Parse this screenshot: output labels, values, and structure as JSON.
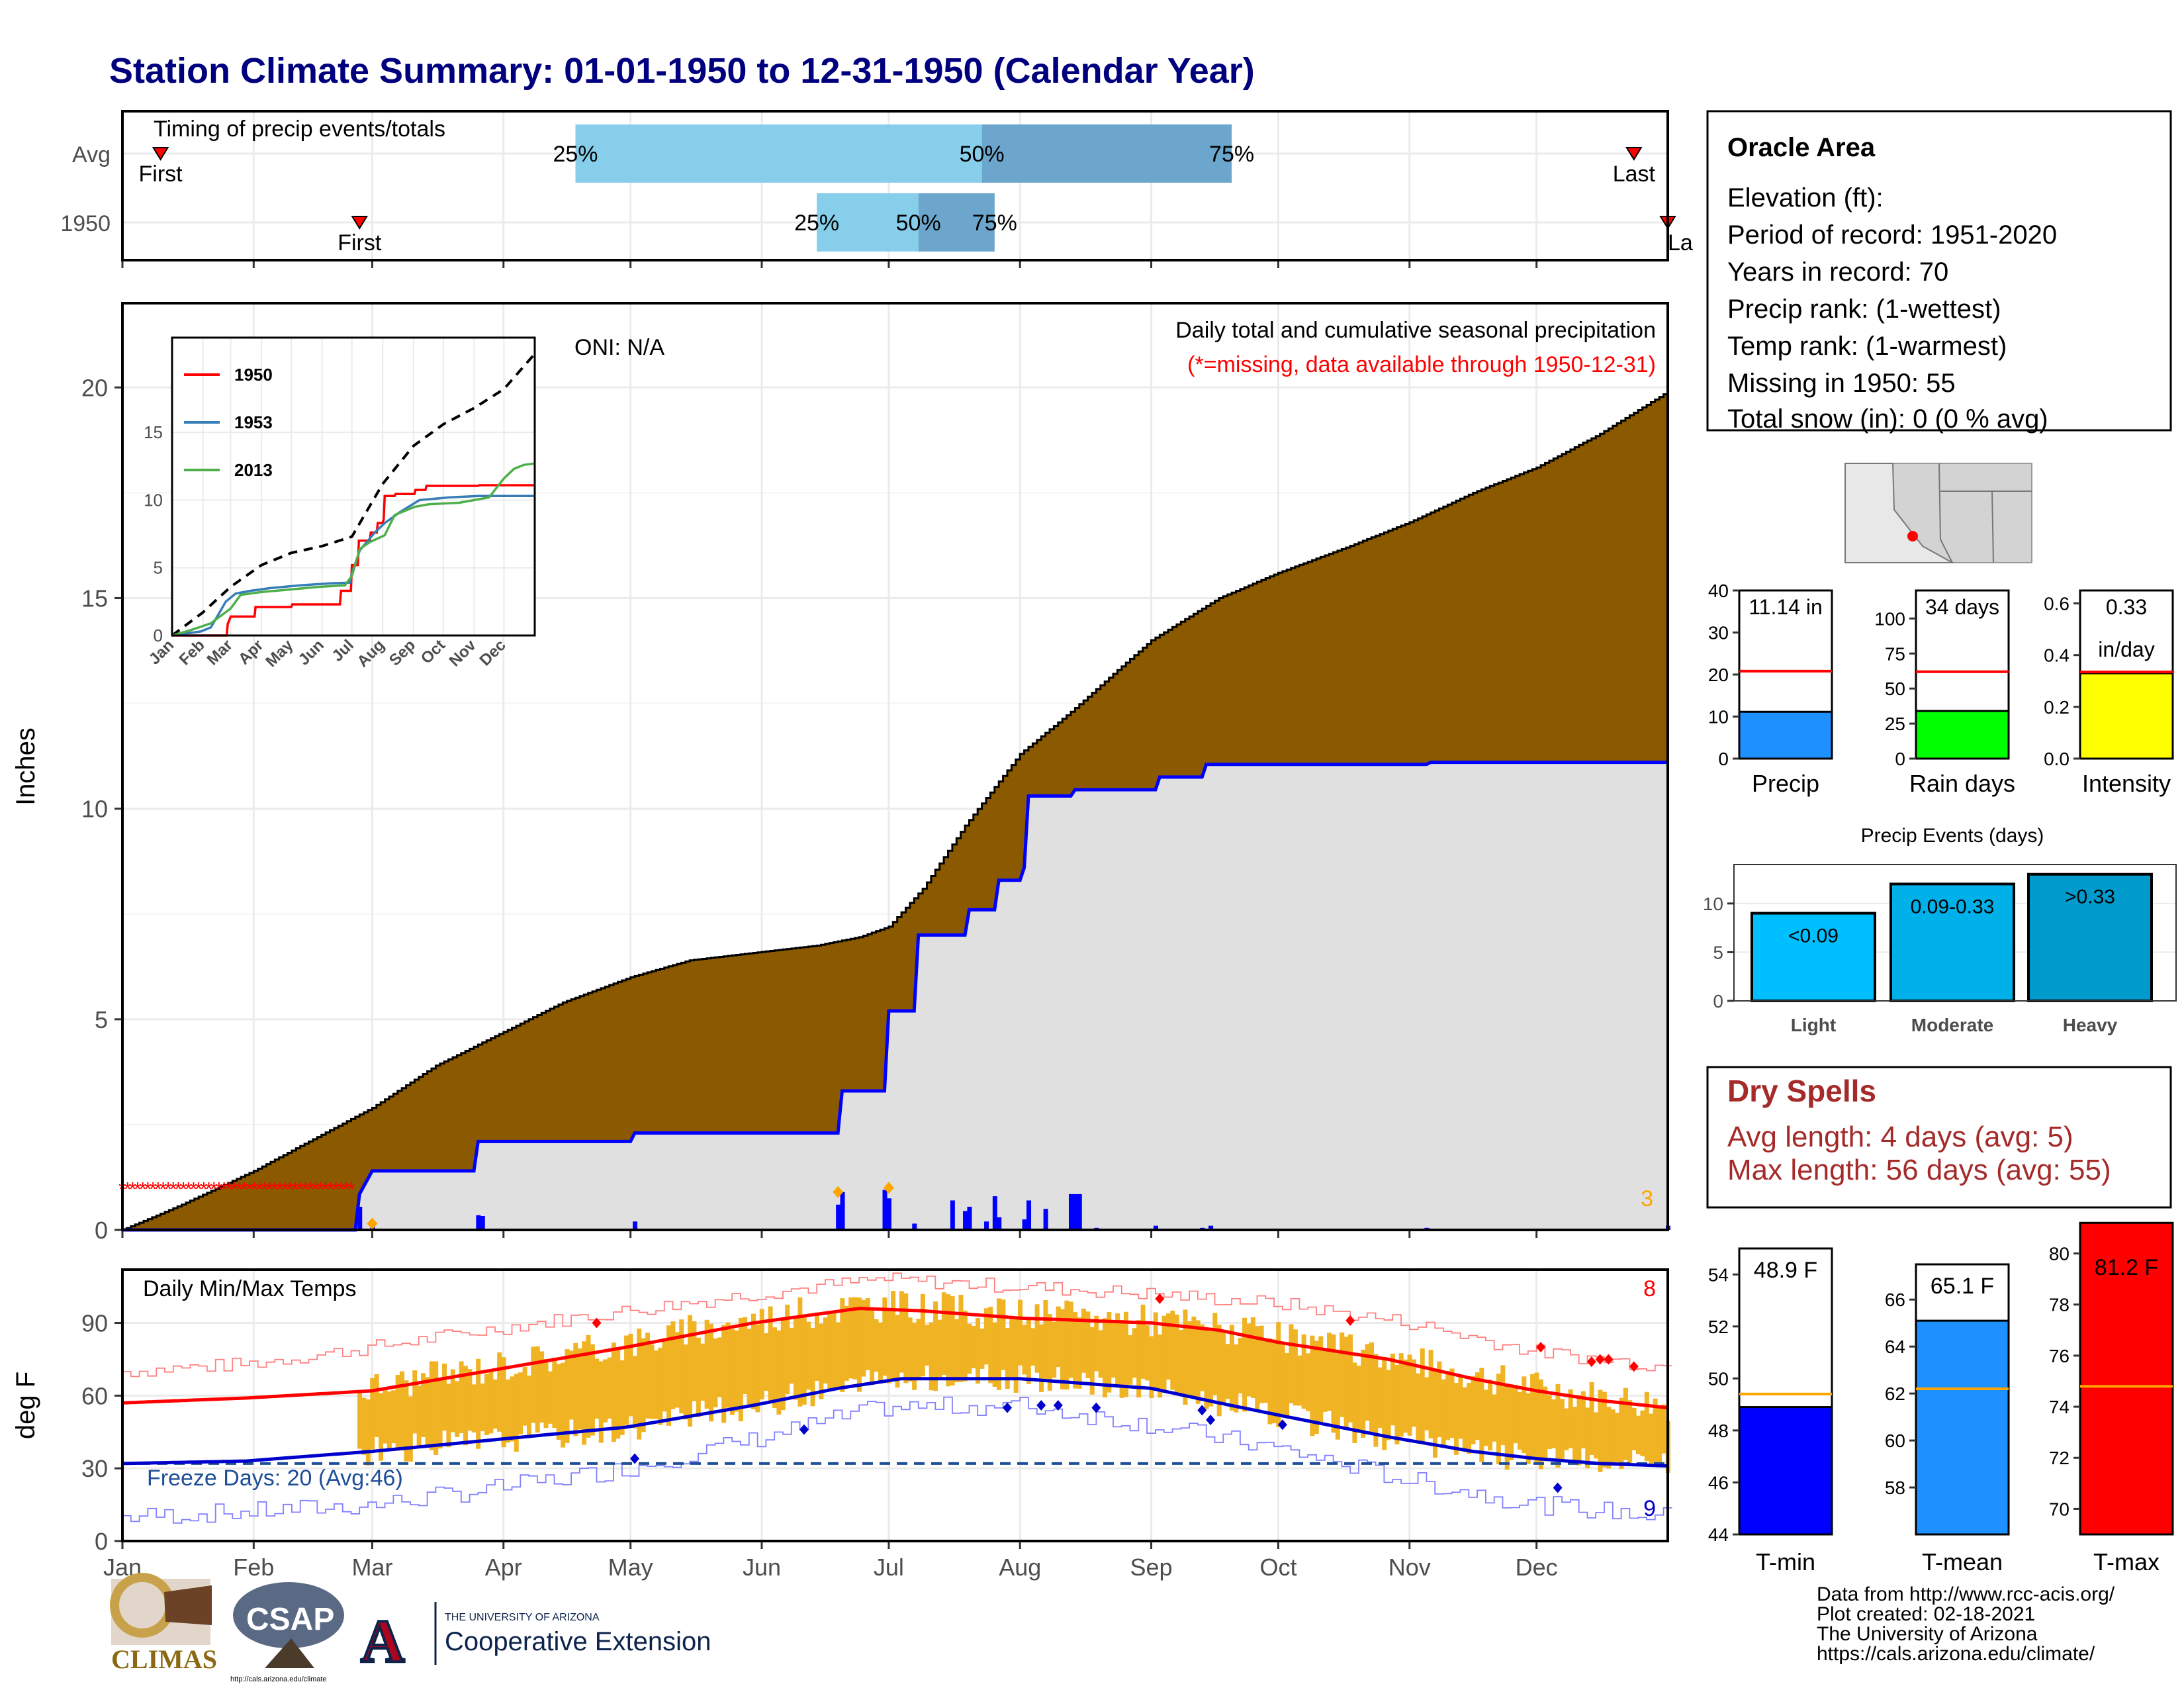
{
  "title": "Station Climate Summary: 01-01-1950 to 12-31-1950 (Calendar Year)",
  "colors": {
    "title": "#00007f",
    "precip_fill": "#8b5a00",
    "precip_avg_fill": "#e0e0e0",
    "avg_line": "#0000ff",
    "quartile_light": "#87ceeb",
    "quartile_dark": "#6ca6cd",
    "temp_bar": "#f0b323",
    "tmax_avg": "#ff0000",
    "tmin_avg": "#0000cd",
    "light": "#00bfff",
    "moderate": "#00b0e8",
    "heavy": "#009acd",
    "rain_days": "#00ff00",
    "intensity": "#ffff00",
    "precip_bar": "#1e90ff",
    "dry_spells": "#a52a2a"
  },
  "timing": {
    "label": "Timing of precip events/totals",
    "rows": [
      {
        "name": "Avg",
        "first_label": "First",
        "last_label": "Last",
        "first_day": 10,
        "last_day": 358,
        "q25_label": "25%",
        "q50_label": "50%",
        "q75_label": "75%",
        "q25": 108,
        "q50": 204,
        "q75": 263
      },
      {
        "name": "1950",
        "first_label": "First",
        "last_label": "La",
        "first_day": 57,
        "last_day": 366,
        "q25_label": "25%",
        "q50_label": "50%",
        "q75_label": "75%",
        "q25": 165,
        "q50": 189,
        "q75": 207
      }
    ]
  },
  "month_labels": [
    "Jan",
    "Feb",
    "Mar",
    "Apr",
    "May",
    "Jun",
    "Jul",
    "Aug",
    "Sep",
    "Oct",
    "Nov",
    "Dec"
  ],
  "month_days": [
    1,
    32,
    60,
    91,
    121,
    152,
    182,
    213,
    244,
    274,
    305,
    335
  ],
  "main_chart": {
    "ylabel": "Inches",
    "yticks": [
      "0",
      "5",
      "10",
      "15",
      "20"
    ],
    "ylim": [
      0,
      22
    ],
    "oni": "ONI: N/A",
    "header": "Daily total and cumulative seasonal precipitation",
    "missing_note": "(*=missing, data available through 1950-12-31)",
    "corner_count": "3",
    "avg_cumulative": [
      [
        1,
        0
      ],
      [
        15,
        0.6
      ],
      [
        32,
        1.4
      ],
      [
        45,
        2.1
      ],
      [
        60,
        2.9
      ],
      [
        75,
        3.9
      ],
      [
        91,
        4.7
      ],
      [
        105,
        5.4
      ],
      [
        121,
        6.0
      ],
      [
        135,
        6.4
      ],
      [
        152,
        6.6
      ],
      [
        165,
        6.75
      ],
      [
        175,
        6.95
      ],
      [
        182,
        7.2
      ],
      [
        190,
        8.1
      ],
      [
        200,
        9.6
      ],
      [
        213,
        11.3
      ],
      [
        225,
        12.3
      ],
      [
        235,
        13.2
      ],
      [
        244,
        14.0
      ],
      [
        260,
        15.0
      ],
      [
        274,
        15.6
      ],
      [
        290,
        16.2
      ],
      [
        305,
        16.8
      ],
      [
        320,
        17.5
      ],
      [
        335,
        18.1
      ],
      [
        350,
        18.9
      ],
      [
        366,
        19.9
      ]
    ],
    "obs_cumulative": [
      [
        1,
        0
      ],
      [
        56,
        0
      ],
      [
        57,
        0.85
      ],
      [
        60,
        1.4
      ],
      [
        84,
        1.4
      ],
      [
        85,
        2.1
      ],
      [
        121,
        2.1
      ],
      [
        122,
        2.3
      ],
      [
        170,
        2.3
      ],
      [
        171,
        3.3
      ],
      [
        181,
        3.3
      ],
      [
        182,
        5.2
      ],
      [
        188,
        5.2
      ],
      [
        189,
        7.0
      ],
      [
        200,
        7.0
      ],
      [
        201,
        7.6
      ],
      [
        207,
        7.6
      ],
      [
        208,
        8.3
      ],
      [
        213,
        8.3
      ],
      [
        214,
        8.6
      ],
      [
        215,
        10.3
      ],
      [
        225,
        10.3
      ],
      [
        226,
        10.45
      ],
      [
        245,
        10.45
      ],
      [
        246,
        10.75
      ],
      [
        256,
        10.75
      ],
      [
        257,
        11.05
      ],
      [
        309,
        11.05
      ],
      [
        310,
        11.1
      ],
      [
        366,
        11.1
      ]
    ],
    "daily_bars": [
      [
        57,
        0.55
      ],
      [
        60,
        0.15
      ],
      [
        85,
        0.35
      ],
      [
        86,
        0.33
      ],
      [
        122,
        0.2
      ],
      [
        170,
        0.6
      ],
      [
        171,
        0.9
      ],
      [
        181,
        0.95
      ],
      [
        182,
        0.75
      ],
      [
        188,
        0.15
      ],
      [
        197,
        0.7
      ],
      [
        200,
        0.45
      ],
      [
        201,
        0.55
      ],
      [
        205,
        0.2
      ],
      [
        207,
        0.8
      ],
      [
        208,
        0.3
      ],
      [
        214,
        0.25
      ],
      [
        215,
        0.7
      ],
      [
        219,
        0.5
      ],
      [
        225,
        0.85
      ],
      [
        226,
        0.85
      ],
      [
        227,
        0.85
      ],
      [
        231,
        0.05
      ],
      [
        245,
        0.1
      ],
      [
        256,
        0.05
      ],
      [
        258,
        0.1
      ],
      [
        309,
        0.05
      ],
      [
        366,
        0.1
      ]
    ],
    "missing_days": [
      1,
      56
    ]
  },
  "inset": {
    "yticks": [
      "0",
      "5",
      "10",
      "15"
    ],
    "series": [
      {
        "name": "1950",
        "color": "#ff0000",
        "values": [
          [
            1,
            0
          ],
          [
            56,
            0
          ],
          [
            57,
            0.85
          ],
          [
            60,
            1.4
          ],
          [
            84,
            1.4
          ],
          [
            85,
            2.1
          ],
          [
            121,
            2.1
          ],
          [
            122,
            2.3
          ],
          [
            170,
            2.3
          ],
          [
            171,
            3.3
          ],
          [
            181,
            3.3
          ],
          [
            182,
            5.2
          ],
          [
            188,
            5.2
          ],
          [
            189,
            7.0
          ],
          [
            200,
            7.0
          ],
          [
            201,
            7.6
          ],
          [
            207,
            7.6
          ],
          [
            208,
            8.3
          ],
          [
            213,
            8.3
          ],
          [
            214,
            8.6
          ],
          [
            215,
            10.3
          ],
          [
            225,
            10.3
          ],
          [
            226,
            10.45
          ],
          [
            245,
            10.45
          ],
          [
            246,
            10.75
          ],
          [
            256,
            10.75
          ],
          [
            257,
            11.05
          ],
          [
            309,
            11.05
          ],
          [
            310,
            11.1
          ],
          [
            366,
            11.1
          ]
        ]
      },
      {
        "name": "1953",
        "color": "#377eb8",
        "values": [
          [
            1,
            0
          ],
          [
            30,
            0.3
          ],
          [
            40,
            0.6
          ],
          [
            48,
            1.6
          ],
          [
            55,
            2.5
          ],
          [
            65,
            3.1
          ],
          [
            80,
            3.3
          ],
          [
            100,
            3.5
          ],
          [
            130,
            3.7
          ],
          [
            160,
            3.85
          ],
          [
            180,
            3.9
          ],
          [
            182,
            4.6
          ],
          [
            190,
            6.3
          ],
          [
            205,
            7.6
          ],
          [
            215,
            8.3
          ],
          [
            230,
            9.1
          ],
          [
            250,
            10.0
          ],
          [
            280,
            10.2
          ],
          [
            310,
            10.3
          ],
          [
            340,
            10.3
          ],
          [
            366,
            10.3
          ]
        ]
      },
      {
        "name": "2013",
        "color": "#4daf4a",
        "values": [
          [
            1,
            0
          ],
          [
            20,
            0.4
          ],
          [
            40,
            0.9
          ],
          [
            60,
            2.0
          ],
          [
            70,
            3.0
          ],
          [
            90,
            3.2
          ],
          [
            120,
            3.4
          ],
          [
            150,
            3.6
          ],
          [
            175,
            3.7
          ],
          [
            182,
            4.4
          ],
          [
            190,
            6.4
          ],
          [
            200,
            6.9
          ],
          [
            215,
            7.4
          ],
          [
            225,
            8.9
          ],
          [
            245,
            9.5
          ],
          [
            260,
            9.7
          ],
          [
            290,
            9.8
          ],
          [
            320,
            10.2
          ],
          [
            335,
            11.6
          ],
          [
            345,
            12.3
          ],
          [
            355,
            12.6
          ],
          [
            366,
            12.7
          ]
        ]
      }
    ],
    "avg_values": [
      [
        1,
        0
      ],
      [
        32,
        1.7
      ],
      [
        60,
        3.6
      ],
      [
        91,
        5.2
      ],
      [
        121,
        6.1
      ],
      [
        152,
        6.6
      ],
      [
        182,
        7.3
      ],
      [
        213,
        11.2
      ],
      [
        244,
        14.0
      ],
      [
        274,
        15.6
      ],
      [
        305,
        16.8
      ],
      [
        335,
        18.2
      ],
      [
        366,
        20.8
      ]
    ]
  },
  "station": {
    "name": "Oracle Area",
    "lines": [
      "Elevation (ft):",
      "Period of record: 1951-2020",
      "Years in record: 70",
      "Precip rank:  (1-wettest)",
      "Temp rank:  (1-warmest)",
      "Missing in 1950: 55",
      "Total snow (in): 0 (0 % avg)"
    ]
  },
  "gauges": [
    {
      "label": "Precip",
      "value_text": "11.14 in",
      "value": 11.14,
      "avg": 20.8,
      "ticks": [
        "0",
        "10",
        "20",
        "30",
        "40"
      ],
      "ymax": 40,
      "color": "#1e90ff"
    },
    {
      "label": "Rain days",
      "value_text": "34 days",
      "value": 34,
      "avg": 62,
      "ticks": [
        "0",
        "25",
        "50",
        "75",
        "100"
      ],
      "ymax": 120,
      "color": "#00ff00"
    },
    {
      "label": "Intensity",
      "value_text": "0.33",
      "value_text2": "in/day",
      "value": 0.33,
      "avg": 0.335,
      "ticks": [
        "0.0",
        "0.2",
        "0.4",
        "0.6"
      ],
      "ymax": 0.65,
      "color": "#ffff00"
    }
  ],
  "events": {
    "title": "Precip Events (days)",
    "yticks": [
      "0",
      "5",
      "10"
    ],
    "ymax": 14,
    "categories": [
      "Light",
      "Moderate",
      "Heavy"
    ],
    "labels": [
      "<0.09",
      "0.09-0.33",
      ">0.33"
    ],
    "values": [
      9,
      12,
      13
    ]
  },
  "dry_spells": {
    "title": "Dry Spells",
    "avg_length": "Avg length: 4 days (avg: 5)",
    "max_length": "Max length: 56 days (avg: 55)"
  },
  "temps": {
    "title": "Daily Min/Max Temps",
    "ylabel": "deg F",
    "yticks": [
      "0",
      "30",
      "60",
      "90"
    ],
    "ylim": [
      0,
      112
    ],
    "freeze": "Freeze Days: 20 (Avg:46)",
    "freeze_line": 32,
    "hot_count": "8",
    "cold_count": "9",
    "tmax_avg": [
      [
        1,
        57
      ],
      [
        30,
        59
      ],
      [
        60,
        62
      ],
      [
        90,
        71
      ],
      [
        120,
        80
      ],
      [
        150,
        90
      ],
      [
        175,
        96
      ],
      [
        190,
        95
      ],
      [
        213,
        92
      ],
      [
        244,
        90
      ],
      [
        260,
        87
      ],
      [
        274,
        82
      ],
      [
        300,
        75
      ],
      [
        320,
        67
      ],
      [
        335,
        62
      ],
      [
        350,
        58
      ],
      [
        366,
        55
      ]
    ],
    "tmin_avg": [
      [
        1,
        32
      ],
      [
        30,
        33
      ],
      [
        60,
        37
      ],
      [
        90,
        42
      ],
      [
        120,
        47
      ],
      [
        150,
        56
      ],
      [
        170,
        63
      ],
      [
        185,
        67
      ],
      [
        213,
        67
      ],
      [
        244,
        63
      ],
      [
        260,
        57
      ],
      [
        274,
        52
      ],
      [
        300,
        43
      ],
      [
        320,
        37
      ],
      [
        335,
        34
      ],
      [
        350,
        32
      ],
      [
        366,
        31
      ]
    ],
    "tmax_record": [
      [
        1,
        70
      ],
      [
        30,
        73
      ],
      [
        60,
        80
      ],
      [
        90,
        88
      ],
      [
        120,
        95
      ],
      [
        150,
        102
      ],
      [
        180,
        108
      ],
      [
        213,
        105
      ],
      [
        244,
        102
      ],
      [
        274,
        98
      ],
      [
        305,
        90
      ],
      [
        335,
        78
      ],
      [
        366,
        72
      ]
    ],
    "tmin_record": [
      [
        1,
        10
      ],
      [
        30,
        12
      ],
      [
        60,
        15
      ],
      [
        90,
        22
      ],
      [
        120,
        30
      ],
      [
        150,
        42
      ],
      [
        180,
        55
      ],
      [
        213,
        56
      ],
      [
        244,
        48
      ],
      [
        274,
        38
      ],
      [
        305,
        25
      ],
      [
        335,
        15
      ],
      [
        366,
        10
      ]
    ]
  },
  "temp_gauges": [
    {
      "label": "T-min",
      "value_text": "48.9 F",
      "value": 48.9,
      "avg": 49.4,
      "ymin": 44,
      "ymax": 55,
      "ticks": [
        "44",
        "46",
        "48",
        "50",
        "52",
        "54"
      ],
      "color": "#0000ff"
    },
    {
      "label": "T-mean",
      "value_text": "65.1 F",
      "value": 65.1,
      "avg": 62.2,
      "ymin": 56,
      "ymax": 67.5,
      "ticks": [
        "58",
        "60",
        "62",
        "64",
        "66"
      ],
      "color": "#1e90ff"
    },
    {
      "label": "T-max",
      "value_text": "81.2 F",
      "value": 81.2,
      "avg": 74.8,
      "ymin": 69,
      "ymax": 80.3,
      "ticks": [
        "70",
        "72",
        "74",
        "76",
        "78",
        "80"
      ],
      "color": "#ff0000"
    }
  ],
  "footer": {
    "lines": [
      "Data from http://www.rcc-acis.org/",
      "Plot created: 02-18-2021",
      "The University of Arizona",
      "https://cals.arizona.edu/climate/"
    ]
  },
  "logos": {
    "climas": "CLIMAS",
    "csap": "CSAP",
    "csap_url": "http://cals.arizona.edu/climate",
    "ua_small": "THE UNIVERSITY OF ARIZONA",
    "ua_big": "Cooperative Extension"
  }
}
